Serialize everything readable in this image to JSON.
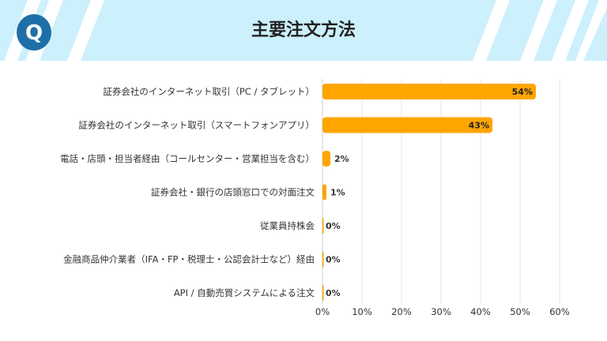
{
  "header": {
    "title": "主要注文方法",
    "icon": "q-badge-icon",
    "badge_text": "Q"
  },
  "colors": {
    "bar": "#FFA500",
    "header_bg": "#CCF0FC",
    "badge": "#1E6FA8",
    "grid": "#E6E6E6"
  },
  "chart_data": {
    "type": "bar",
    "orientation": "horizontal",
    "title": "主要注文方法",
    "categories": [
      "証券会社のインターネット取引（PC / タブレット）",
      "証券会社のインターネット取引（スマートフォンアプリ）",
      "電話・店頭・担当者経由（コールセンター・営業担当を含む）",
      "証券会社・銀行の店頭窓口での対面注文",
      "従業員持株会",
      "金融商品仲介業者（IFA・FP・税理士・公認会計士など）経由",
      "API / 自動売買システムによる注文"
    ],
    "values": [
      54,
      43,
      2,
      1,
      0,
      0,
      0
    ],
    "data_labels": [
      "54%",
      "43%",
      "2%",
      "1%",
      "0%",
      "0%",
      "0%"
    ],
    "xlim": [
      0,
      60
    ],
    "xticks": [
      "0%",
      "10%",
      "20%",
      "30%",
      "40%",
      "50%",
      "60%"
    ],
    "grid": true,
    "xlabel": "",
    "ylabel": ""
  }
}
